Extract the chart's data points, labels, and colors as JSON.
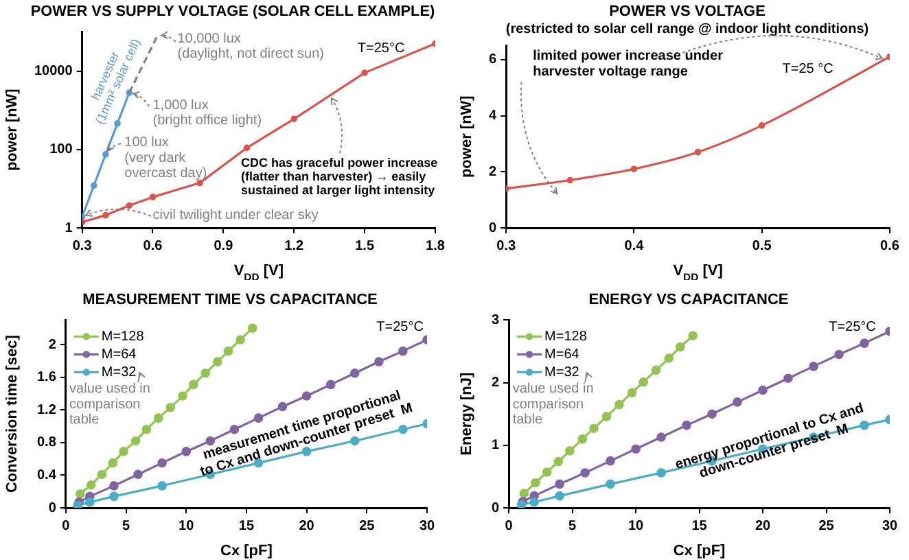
{
  "chart_data": [
    {
      "type": "line",
      "title": "POWER VS SUPPLY VOLTAGE (SOLAR CELL EXAMPLE)",
      "xlabel": "V$_{DD}$ [V]",
      "ylabel": "power [nW]",
      "log": "y",
      "xlim": [
        0.3,
        1.8
      ],
      "xticks": [
        0.3,
        0.6,
        0.9,
        1.2,
        1.5,
        1.8
      ],
      "ylim": [
        1,
        100000
      ],
      "yticks": [
        1,
        100,
        10000
      ],
      "legend": false,
      "marker": "circle",
      "series": [
        {
          "color": "#d9534f",
          "x": [
            0.3,
            0.4,
            0.5,
            0.6,
            0.8,
            1.0,
            1.2,
            1.5,
            1.8
          ],
          "values": [
            1.4,
            2.1,
            3.7,
            6.1,
            14,
            110,
            600,
            9000,
            50000
          ]
        },
        {
          "name": "harvester\n(1mm² solar cell)",
          "color": "#5b9bd5",
          "x": [
            0.3,
            0.35,
            0.4,
            0.45,
            0.5
          ],
          "values": [
            1.9,
            12,
            75,
            460,
            2800
          ]
        },
        {
          "color": "#808080",
          "x": [
            0.5,
            0.62
          ],
          "values": [
            2800,
            80000
          ],
          "line_style": "dashed",
          "marker": "none"
        }
      ],
      "annotations": [
        {
          "text": "10,000 lux\n(daylight, not direct sun)",
          "x": 0.62,
          "y": 80000
        },
        {
          "text": "1,000 lux\n(bright office light)",
          "x": 0.5,
          "y": 2800
        },
        {
          "text": "100 lux\n(very dark\novercast day)",
          "x": 0.4,
          "y": 75
        },
        {
          "text": "civil twilight under clear sky",
          "x": 0.3,
          "y": 1.9
        },
        "T=25°C",
        {
          "text": "CDC has graceful power increase\n(flatter than harvester) → easily\nsustained at larger light intensity",
          "x": 1.35,
          "y": 2500
        }
      ]
    },
    {
      "type": "line",
      "title": "POWER VS VOLTAGE",
      "subtitle": "(restricted to solar cell range @ indoor light conditions)",
      "xlabel": "V$_{DD}$ [V]",
      "ylabel": "power [nW]",
      "xlim": [
        0.3,
        0.6
      ],
      "xticks": [
        0.3,
        0.4,
        0.5,
        0.6
      ],
      "ylim": [
        0,
        6.5
      ],
      "yticks": [
        0,
        2,
        4,
        6
      ],
      "legend": false,
      "marker": "circle",
      "series": [
        {
          "color": "#d9534f",
          "x": [
            0.3,
            0.35,
            0.4,
            0.45,
            0.5,
            0.6
          ],
          "values": [
            1.4,
            1.7,
            2.1,
            2.7,
            3.65,
            6.1
          ]
        }
      ],
      "annotations": [
        "limited power increase under\nharvester voltage range",
        "T=25 °C"
      ]
    },
    {
      "type": "line",
      "title": "MEASUREMENT TIME VS CAPACITANCE",
      "xlabel": "Cx [pF]",
      "ylabel": "Conversion time [sec]",
      "xlim": [
        0,
        30
      ],
      "xticks": [
        0,
        5,
        10,
        15,
        20,
        25,
        30
      ],
      "ylim": [
        0,
        2.3
      ],
      "yticks": [
        0,
        0.4,
        0.8,
        1.2,
        1.6,
        2
      ],
      "legend": "top left",
      "marker": "circle",
      "series": [
        {
          "name": "M=128",
          "color": "#92c353",
          "x": [
            1.2,
            2.1,
            3,
            3.9,
            4.8,
            5.8,
            6.7,
            7.7,
            8.7,
            9.7,
            10.6,
            11.6,
            12.6,
            13.5,
            14.5,
            15.5
          ],
          "values": [
            0.17,
            0.28,
            0.41,
            0.55,
            0.69,
            0.82,
            0.96,
            1.1,
            1.23,
            1.37,
            1.51,
            1.65,
            1.79,
            1.92,
            2.06,
            2.2
          ]
        },
        {
          "name": "M=64",
          "color": "#8064a2",
          "x": [
            1.1,
            2,
            4,
            6,
            8,
            10,
            12,
            14,
            16,
            18,
            20,
            22,
            24,
            26,
            28,
            30
          ],
          "values": [
            0.07,
            0.14,
            0.27,
            0.41,
            0.55,
            0.69,
            0.82,
            0.96,
            1.1,
            1.24,
            1.37,
            1.51,
            1.65,
            1.79,
            1.92,
            2.06
          ]
        },
        {
          "name": "M=32",
          "color": "#4bacc6",
          "x": [
            1,
            2,
            4,
            8,
            12,
            16,
            20,
            24,
            28,
            30
          ],
          "values": [
            0.03,
            0.07,
            0.14,
            0.27,
            0.41,
            0.55,
            0.69,
            0.82,
            0.96,
            1.03
          ]
        }
      ],
      "annotations": [
        "T=25°C",
        "value used in\ncomparison\ntable",
        "measurement time proportional\nto Cx and down-counter preset  M"
      ]
    },
    {
      "type": "line",
      "title": "ENERGY VS CAPACITANCE",
      "xlabel": "Cx [pF]",
      "ylabel": "Energy [nJ]",
      "xlim": [
        0,
        30
      ],
      "xticks": [
        0,
        5,
        10,
        15,
        20,
        25,
        30
      ],
      "ylim": [
        0,
        3
      ],
      "yticks": [
        0,
        1,
        2,
        3
      ],
      "legend": "top left",
      "marker": "circle",
      "series": [
        {
          "name": "M=128",
          "color": "#92c353",
          "x": [
            1.2,
            2.1,
            3,
            3.9,
            4.8,
            5.8,
            6.7,
            7.7,
            8.7,
            9.7,
            10.6,
            11.6,
            12.6,
            13.5,
            14.5
          ],
          "values": [
            0.23,
            0.4,
            0.57,
            0.74,
            0.91,
            1.1,
            1.27,
            1.46,
            1.65,
            1.84,
            2.01,
            2.2,
            2.39,
            2.57,
            2.75
          ]
        },
        {
          "name": "M=64",
          "color": "#8064a2",
          "x": [
            1.1,
            2,
            4,
            6,
            8,
            10,
            12,
            14,
            16,
            18,
            20,
            22,
            24,
            26,
            28,
            30
          ],
          "values": [
            0.1,
            0.19,
            0.38,
            0.56,
            0.75,
            0.94,
            1.13,
            1.32,
            1.5,
            1.69,
            1.88,
            2.07,
            2.26,
            2.45,
            2.63,
            2.82
          ]
        },
        {
          "name": "M=32",
          "color": "#4bacc6",
          "x": [
            1,
            2,
            4,
            8,
            12,
            16,
            20,
            24,
            28,
            30
          ],
          "values": [
            0.05,
            0.09,
            0.19,
            0.38,
            0.56,
            0.75,
            0.94,
            1.13,
            1.32,
            1.41
          ]
        }
      ],
      "annotations": [
        "T=25°C",
        "value used in\ncomparison\ntable",
        "energy proportional to Cx and\ndown-counter preset  M"
      ]
    }
  ]
}
